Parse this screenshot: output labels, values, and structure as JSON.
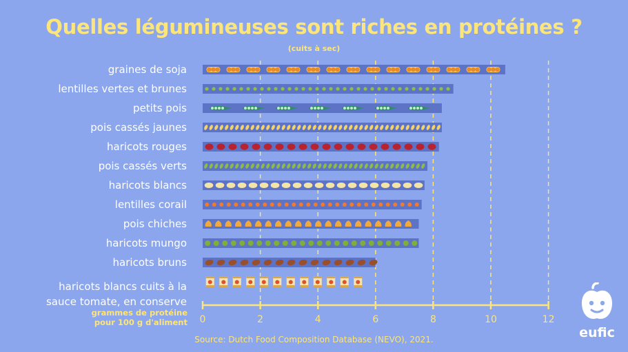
{
  "header": {
    "title": "Quelles légumineuses sont riches en protéines ?",
    "subtitle": "(cuits à sec)"
  },
  "axis": {
    "label_line1": "grammes de protéine",
    "label_line2": "pour 100 g d'aliment"
  },
  "footer": {
    "source": "Source: Dutch Food Composition Database (NEVO), 2021."
  },
  "logo": {
    "text": "eufic"
  },
  "colors": {
    "background": "#8ba6ec",
    "bar": "#5d73c6",
    "accent_yellow": "#fbe57c",
    "label_white": "#ffffff"
  },
  "chart_data": {
    "type": "bar",
    "orientation": "horizontal",
    "title": "Quelles légumineuses sont riches en protéines ?",
    "subtitle": "(cuits à sec)",
    "xlabel": "grammes de protéine pour 100 g d'aliment",
    "xlim": [
      0,
      12
    ],
    "xticks": [
      0,
      2,
      4,
      6,
      8,
      10,
      12
    ],
    "grid": "vertical dashed",
    "categories": [
      {
        "label": [
          "graines de soja"
        ],
        "value": 10.5,
        "icon": "soybean-pod-icon",
        "color": "#f2a73b"
      },
      {
        "label": [
          "lentilles vertes et brunes"
        ],
        "value": 8.7,
        "icon": "lentil-dot-icon",
        "color": "#8fbf45"
      },
      {
        "label": [
          "petits pois"
        ],
        "value": 8.3,
        "icon": "pea-pod-icon",
        "color": "#4cc48a"
      },
      {
        "label": [
          "pois cassés jaunes"
        ],
        "value": 8.3,
        "icon": "split-pea-yellow-icon",
        "color": "#f5d36b"
      },
      {
        "label": [
          "haricots rouges"
        ],
        "value": 8.2,
        "icon": "kidney-bean-red-icon",
        "color": "#b8232f"
      },
      {
        "label": [
          "pois cassés verts"
        ],
        "value": 7.8,
        "icon": "split-pea-green-icon",
        "color": "#8cbb4c"
      },
      {
        "label": [
          "haricots blancs"
        ],
        "value": 7.7,
        "icon": "white-bean-icon",
        "color": "#f4e4a8"
      },
      {
        "label": [
          "lentilles corail"
        ],
        "value": 7.6,
        "icon": "coral-lentil-icon",
        "color": "#ef7a30"
      },
      {
        "label": [
          "pois chiches"
        ],
        "value": 7.5,
        "icon": "chickpea-icon",
        "color": "#f0a93f"
      },
      {
        "label": [
          "haricots mungo"
        ],
        "value": 7.5,
        "icon": "mung-bean-icon",
        "color": "#7fae3a"
      },
      {
        "label": [
          "haricots bruns"
        ],
        "value": 6.0,
        "icon": "brown-bean-icon",
        "color": "#9a4f2c"
      },
      {
        "label": [
          "haricots blancs cuits à la",
          "sauce tomate, en conserve"
        ],
        "value": 5.6,
        "icon": "baked-beans-can-icon",
        "color": "#f4d58d"
      }
    ]
  }
}
